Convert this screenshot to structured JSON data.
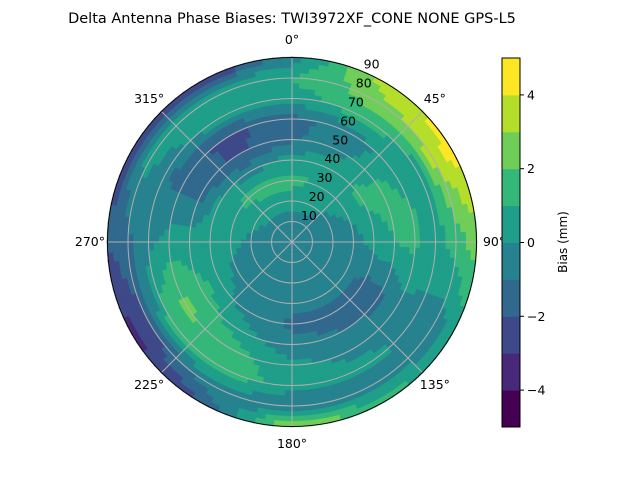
{
  "chart_data": {
    "type": "heatmap",
    "subtype": "polar-contour",
    "title": "Delta Antenna Phase Biases: TWI3972XF_CONE  NONE GPS-L5",
    "colorbar_label": "Bias (mm)",
    "colorbar_ticks": [
      "−4",
      "−2",
      "0",
      "2",
      "4"
    ],
    "colorbar_tick_values": [
      -4,
      -2,
      0,
      2,
      4
    ],
    "levels": [
      -5,
      -4,
      -3,
      -2,
      -1,
      0,
      1,
      2,
      3,
      4,
      5
    ],
    "level_colors": [
      "#440154",
      "#482878",
      "#3e4989",
      "#31688e",
      "#26828e",
      "#1f9e89",
      "#35b779",
      "#6ece58",
      "#b5de2b",
      "#fde725"
    ],
    "angle_ticks": [
      "0°",
      "45°",
      "90°",
      "135°",
      "180°",
      "225°",
      "270°",
      "315°"
    ],
    "angle_tick_values": [
      0,
      45,
      90,
      135,
      180,
      225,
      270,
      315
    ],
    "radial_ticks": [
      "10",
      "20",
      "30",
      "40",
      "50",
      "60",
      "70",
      "80",
      "90"
    ],
    "radial_tick_values": [
      10,
      20,
      30,
      40,
      50,
      60,
      70,
      80,
      90
    ],
    "radial_range": [
      0,
      90
    ],
    "theta_direction": "clockwise",
    "theta_zero": "north",
    "grid": true,
    "azimuths": [
      0,
      30,
      60,
      90,
      120,
      150,
      180,
      210,
      240,
      270,
      300,
      330
    ],
    "zeniths": [
      0,
      10,
      20,
      30,
      40,
      50,
      60,
      70,
      80,
      90
    ],
    "bias_grid": [
      [
        -0.5,
        -0.5,
        -0.5,
        -0.5,
        -0.5,
        -0.5,
        -0.5,
        -0.5,
        -0.5,
        -0.5,
        -0.5,
        -0.5
      ],
      [
        -0.5,
        -0.4,
        -0.5,
        -0.5,
        -0.5,
        -0.5,
        -0.5,
        -0.5,
        -0.5,
        -0.5,
        -0.5,
        -0.4
      ],
      [
        0.5,
        0.3,
        -0.3,
        -0.5,
        -0.5,
        -0.5,
        -0.5,
        -0.5,
        -0.5,
        -0.3,
        0.3,
        0.5
      ],
      [
        1.3,
        0.8,
        0.3,
        -0.5,
        -0.5,
        -0.7,
        -0.7,
        -0.5,
        -0.3,
        0.3,
        1.0,
        1.5
      ],
      [
        0.5,
        0.8,
        1.2,
        0.5,
        -1.3,
        -1.3,
        -1.2,
        -0.5,
        0.5,
        0.5,
        0.3,
        -0.5
      ],
      [
        -1.2,
        -0.3,
        1.3,
        1.0,
        -1.2,
        -1.0,
        -0.7,
        0.5,
        1.5,
        0.5,
        -1.5,
        -2.2
      ],
      [
        -1.3,
        -0.5,
        0.8,
        1.3,
        -0.3,
        -0.3,
        0.3,
        1.5,
        2.3,
        0.5,
        -1.5,
        -2.3
      ],
      [
        0.5,
        1.5,
        0.5,
        0.5,
        -0.3,
        0.3,
        0.5,
        1.8,
        1.5,
        -0.3,
        -0.8,
        0.8
      ],
      [
        1.0,
        2.5,
        3.5,
        1.5,
        -0.5,
        -0.7,
        -1.0,
        -0.5,
        -2.3,
        -1.3,
        0.5,
        1.0
      ],
      [
        -0.5,
        3.5,
        4.5,
        2.5,
        0.5,
        1.5,
        3.5,
        -2.0,
        -3.5,
        -2.0,
        -2.5,
        -3.5
      ]
    ]
  }
}
